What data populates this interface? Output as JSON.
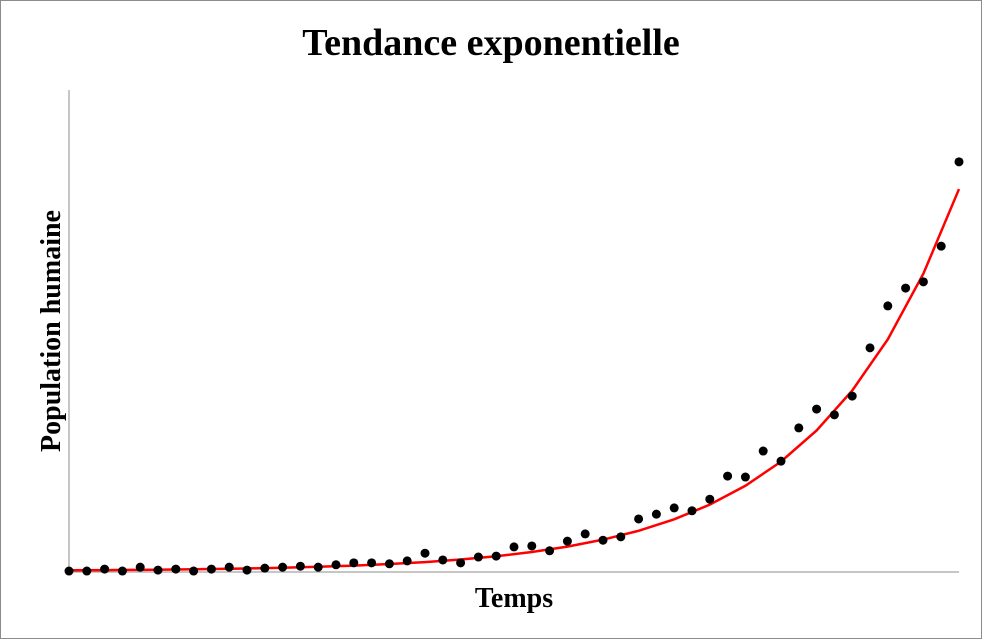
{
  "chart_data": {
    "type": "scatter",
    "title": "Tendance exponentielle",
    "x_label": "Temps",
    "y_label": "Population humaine",
    "xlim": [
      0,
      50
    ],
    "ylim": [
      0,
      100
    ],
    "x": [
      0,
      1,
      2,
      3,
      4,
      5,
      6,
      7,
      8,
      9,
      10,
      11,
      12,
      13,
      14,
      15,
      16,
      17,
      18,
      19,
      20,
      21,
      22,
      23,
      24,
      25,
      26,
      27,
      28,
      29,
      30,
      31,
      32,
      33,
      34,
      35,
      36,
      37,
      38,
      39,
      40,
      41,
      42,
      43,
      44,
      45,
      46,
      47,
      48,
      49,
      50
    ],
    "series": [
      {
        "color": "#000000",
        "values": [
          0.2,
          0.2,
          0.6,
          0.2,
          1.0,
          0.4,
          0.6,
          0.2,
          0.6,
          1.0,
          0.4,
          0.8,
          1.0,
          1.2,
          1.0,
          1.5,
          1.9,
          1.9,
          1.7,
          2.3,
          3.9,
          2.5,
          1.9,
          3.1,
          3.3,
          5.2,
          5.4,
          4.4,
          6.4,
          7.9,
          6.6,
          7.3,
          11.0,
          12.0,
          13.3,
          12.7,
          15.1,
          19.9,
          19.7,
          25.1,
          23.0,
          29.9,
          33.8,
          32.6,
          36.5,
          46.5,
          55.2,
          58.9,
          60.2,
          67.6,
          85.1
        ]
      }
    ],
    "trend_line": {
      "color": "#ff0000",
      "x": [
        0,
        2,
        4,
        6,
        8,
        10,
        12,
        14,
        16,
        18,
        20,
        22,
        24,
        26,
        28,
        30,
        32,
        34,
        36,
        38,
        40,
        42,
        44,
        46,
        48,
        50
      ],
      "values": [
        0.35,
        0.4,
        0.45,
        0.52,
        0.62,
        0.73,
        0.89,
        1.08,
        1.33,
        1.65,
        2.06,
        2.59,
        3.27,
        4.15,
        5.27,
        6.71,
        8.55,
        10.93,
        13.97,
        17.89,
        22.9,
        29.36,
        37.64,
        48.27,
        61.9,
        79.45
      ]
    }
  }
}
